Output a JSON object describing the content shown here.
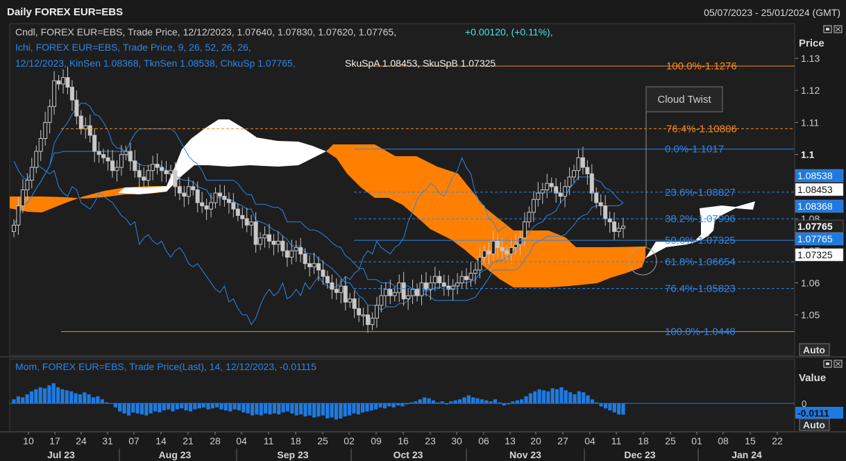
{
  "header": {
    "title": "Daily FOREX EUR=EBS",
    "date_range": "05/07/2023 - 25/01/2024 (GMT)"
  },
  "legend": {
    "candles_line": "Cndl, FOREX EUR=EBS, Trade Price, 12/12/2023, 1.07640, 1.07830, 1.07620, 1.07765,",
    "candles_change": "+0.00120, (+0.11%),",
    "ichi_line1": "Ichi, FOREX EUR=EBS, Trade Price,  9, 26, 52, 26, 26,",
    "ichi_line2": "12/12/2023, KinSen 1.08368, TknSen 1.08538, ChkuSp 1.07765,",
    "ichi_span": "SkuSpA 1.08453, SkuSpB 1.07325",
    "momentum": "Mom, FOREX EUR=EBS, Trade Price(Last),  14, 12/12/2023, -0.01115"
  },
  "annotation": {
    "label": "Cloud Twist"
  },
  "axis_labels": {
    "price": "Price",
    "value": "Value",
    "auto_main": "Auto",
    "auto_mom": "Auto"
  },
  "colors": {
    "background": "#1a1a1a",
    "cloud_bear": "#ff8000",
    "cloud_bull": "#ffffff",
    "line": "#2f86e8",
    "fib_orange": "#ff8a1a",
    "fib_blue": "#2f86e8",
    "mom_bar": "#1f7ae0"
  },
  "chart_data": [
    {
      "type": "candlestick",
      "title": "Daily FOREX EUR=EBS",
      "ylabel": "Price",
      "ylim": [
        1.04,
        1.135
      ],
      "yticks": [
        "1.13",
        "1.12",
        "1.11",
        "1.1",
        "1.08",
        "1.07",
        "1.06",
        "1.05"
      ],
      "xticks": [
        "10",
        "17",
        "24",
        "31",
        "07",
        "14",
        "21",
        "28",
        "04",
        "11",
        "18",
        "25",
        "02",
        "09",
        "16",
        "23",
        "30",
        "06",
        "13",
        "20",
        "27",
        "04",
        "11",
        "18",
        "25",
        "01",
        "08",
        "15",
        "22"
      ],
      "months": [
        "Jul 23",
        "Aug 23",
        "Sep 23",
        "Oct 23",
        "Nov 23",
        "Dec 23",
        "Jan 24"
      ],
      "close": [
        1.078,
        1.084,
        1.089,
        1.092,
        1.096,
        1.101,
        1.105,
        1.11,
        1.115,
        1.123,
        1.122,
        1.124,
        1.121,
        1.117,
        1.112,
        1.108,
        1.109,
        1.106,
        1.101,
        1.1,
        1.099,
        1.098,
        1.095,
        1.096,
        1.1,
        1.101,
        1.098,
        1.095,
        1.093,
        1.092,
        1.095,
        1.097,
        1.096,
        1.095,
        1.094,
        1.095,
        1.09,
        1.088,
        1.087,
        1.09,
        1.089,
        1.085,
        1.084,
        1.083,
        1.085,
        1.088,
        1.087,
        1.086,
        1.085,
        1.083,
        1.081,
        1.08,
        1.078,
        1.079,
        1.072,
        1.074,
        1.075,
        1.073,
        1.072,
        1.073,
        1.07,
        1.068,
        1.07,
        1.071,
        1.069,
        1.066,
        1.065,
        1.066,
        1.064,
        1.062,
        1.06,
        1.058,
        1.057,
        1.059,
        1.054,
        1.055,
        1.052,
        1.05,
        1.05,
        1.047,
        1.049,
        1.053,
        1.056,
        1.058,
        1.056,
        1.057,
        1.06,
        1.055,
        1.056,
        1.058,
        1.056,
        1.06,
        1.058,
        1.06,
        1.062,
        1.06,
        1.059,
        1.058,
        1.059,
        1.06,
        1.062,
        1.061,
        1.063,
        1.064,
        1.068,
        1.07,
        1.069,
        1.073,
        1.071,
        1.07,
        1.069,
        1.071,
        1.072,
        1.074,
        1.079,
        1.082,
        1.086,
        1.088,
        1.089,
        1.091,
        1.09,
        1.088,
        1.087,
        1.09,
        1.093,
        1.095,
        1.099,
        1.096,
        1.094,
        1.088,
        1.085,
        1.084,
        1.08,
        1.079,
        1.076,
        1.077,
        1.0777
      ],
      "fibonacci_orange": [
        {
          "label": "100.0%",
          "value": 1.1276
        },
        {
          "label": "76.4%",
          "value": 1.10806
        }
      ],
      "fibonacci_blue": [
        {
          "label": "0.0%",
          "value": 1.1017
        },
        {
          "label": "23.6%",
          "value": 1.08827
        },
        {
          "label": "38.2%",
          "value": 1.07996
        },
        {
          "label": "50.0%",
          "value": 1.07325
        },
        {
          "label": "61.8%",
          "value": 1.06654
        },
        {
          "label": "76.4%",
          "value": 1.05823
        },
        {
          "label": "100.0%",
          "value": 1.0448
        }
      ],
      "price_tags": [
        "1.08538",
        "1.08453",
        "1.08368",
        "1.07765",
        "1.07765",
        "1.07325"
      ]
    },
    {
      "type": "bar",
      "title": "Mom, FOREX EUR=EBS, Trade Price(Last),  14, 12/12/2023, -0.01115",
      "ylabel": "Value",
      "yticks": [
        "0"
      ],
      "last_value": "-0.0111",
      "values": [
        0.004,
        0.007,
        0.006,
        0.009,
        0.012,
        0.014,
        0.016,
        0.015,
        0.018,
        0.02,
        0.016,
        0.014,
        0.013,
        0.012,
        0.01,
        0.009,
        0.011,
        0.009,
        0.006,
        0.007,
        0.004,
        0.001,
        0.0,
        -0.004,
        -0.008,
        -0.01,
        -0.012,
        -0.009,
        -0.01,
        -0.011,
        -0.012,
        -0.01,
        -0.008,
        -0.009,
        -0.007,
        -0.006,
        -0.008,
        -0.006,
        -0.005,
        -0.007,
        -0.008,
        -0.006,
        -0.005,
        -0.004,
        -0.006,
        -0.005,
        -0.004,
        -0.006,
        -0.007,
        -0.008,
        -0.006,
        -0.007,
        -0.009,
        -0.01,
        -0.012,
        -0.011,
        -0.012,
        -0.01,
        -0.011,
        -0.01,
        -0.011,
        -0.009,
        -0.008,
        -0.01,
        -0.012,
        -0.011,
        -0.013,
        -0.012,
        -0.014,
        -0.013,
        -0.012,
        -0.015,
        -0.014,
        -0.016,
        -0.015,
        -0.013,
        -0.012,
        -0.01,
        -0.011,
        -0.009,
        -0.008,
        -0.007,
        -0.006,
        -0.004,
        -0.005,
        -0.003,
        -0.004,
        -0.002,
        -0.003,
        -0.001,
        0.001,
        0.002,
        0.004,
        0.006,
        0.005,
        0.003,
        0.001,
        0.002,
        -0.001,
        0.002,
        0.003,
        0.004,
        0.006,
        0.008,
        0.006,
        0.005,
        0.004,
        0.003,
        0.002,
        0.004,
        0.001,
        -0.002,
        -0.001,
        0.002,
        0.003,
        0.004,
        0.007,
        0.01,
        0.012,
        0.014,
        0.013,
        0.012,
        0.015,
        0.014,
        0.016,
        0.013,
        0.011,
        0.009,
        0.012,
        0.011,
        0.008,
        0.004,
        0.001,
        -0.003,
        -0.005,
        -0.007,
        -0.009,
        -0.011,
        -0.01115
      ]
    }
  ]
}
